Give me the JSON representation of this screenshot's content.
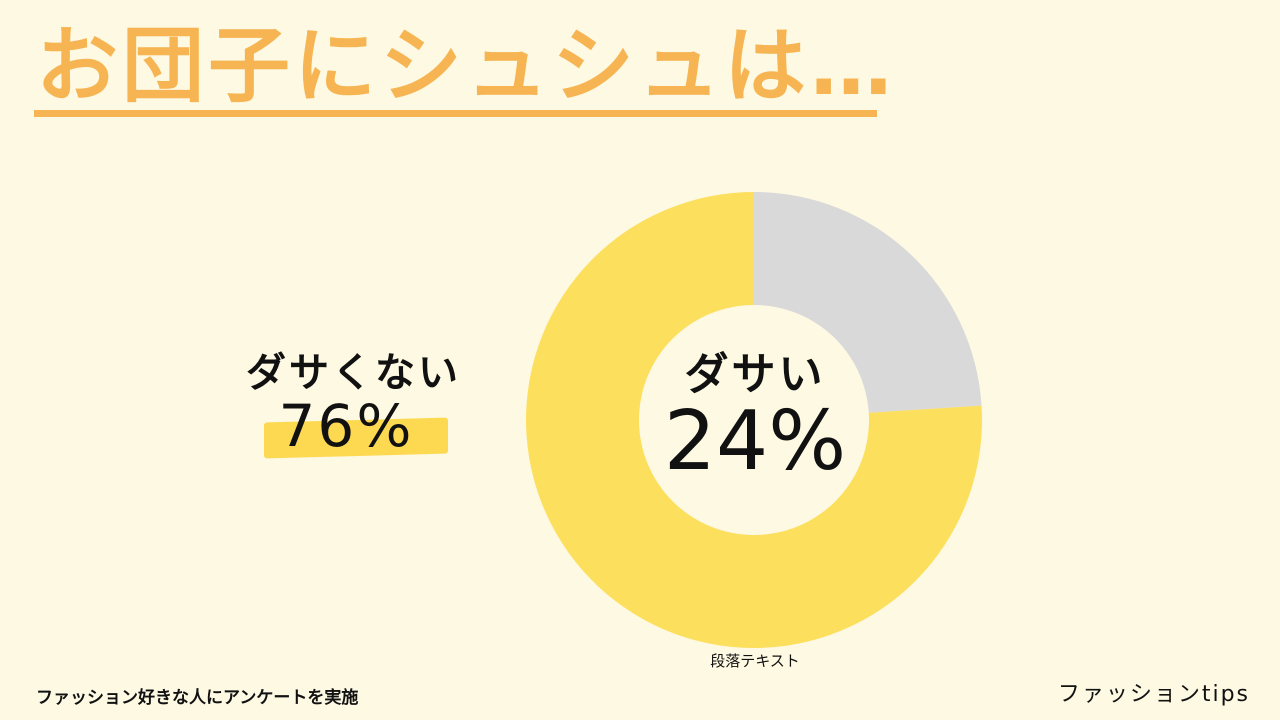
{
  "slide": {
    "title": "お団子にシュシュは…",
    "footer_note": "ファッション好きな人にアンケートを実施",
    "brand": "ファッションtips",
    "chart_caption": "段落テキスト"
  },
  "labels": {
    "left_title": "ダサくない",
    "left_value": "76%",
    "center_title": "ダサい",
    "center_value": "24%"
  },
  "colors": {
    "background": "#fdf9e3",
    "title": "#f6b552",
    "slice_main": "#fddf5e",
    "slice_other": "#d9d9d9",
    "highlight": "#fdd951"
  },
  "chart_data": {
    "type": "pie",
    "categories": [
      "ダサい",
      "ダサくない"
    ],
    "values": [
      24,
      76
    ],
    "unit": "%",
    "donut": true
  }
}
